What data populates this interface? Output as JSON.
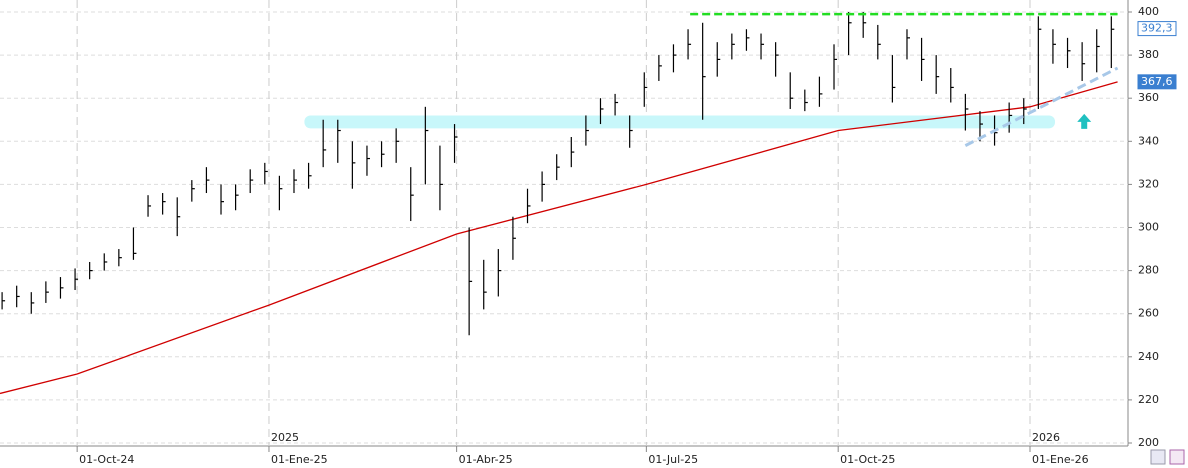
{
  "chart_data": {
    "type": "ohlc",
    "x": [
      "2024-08-26",
      "2024-09-02",
      "2024-09-09",
      "2024-09-16",
      "2024-09-23",
      "2024-09-30",
      "2024-10-07",
      "2024-10-14",
      "2024-10-21",
      "2024-10-28",
      "2024-11-04",
      "2024-11-11",
      "2024-11-18",
      "2024-11-25",
      "2024-12-02",
      "2024-12-09",
      "2024-12-16",
      "2024-12-23",
      "2024-12-30",
      "2025-01-06",
      "2025-01-13",
      "2025-01-20",
      "2025-01-27",
      "2025-02-03",
      "2025-02-10",
      "2025-02-17",
      "2025-02-24",
      "2025-03-03",
      "2025-03-10",
      "2025-03-17",
      "2025-03-24",
      "2025-03-31",
      "2025-04-07",
      "2025-04-14",
      "2025-04-21",
      "2025-04-28",
      "2025-05-05",
      "2025-05-12",
      "2025-05-19",
      "2025-05-26",
      "2025-06-02",
      "2025-06-09",
      "2025-06-16",
      "2025-06-23",
      "2025-06-30",
      "2025-07-07",
      "2025-07-14",
      "2025-07-21",
      "2025-07-28",
      "2025-08-04",
      "2025-08-11",
      "2025-08-18",
      "2025-08-25",
      "2025-09-01",
      "2025-09-08",
      "2025-09-15",
      "2025-09-22",
      "2025-09-29",
      "2025-10-06",
      "2025-10-13",
      "2025-10-20",
      "2025-10-27",
      "2025-11-03",
      "2025-11-10",
      "2025-11-17",
      "2025-11-24",
      "2025-12-01",
      "2025-12-08",
      "2025-12-15",
      "2025-12-22",
      "2025-12-29",
      "2026-01-05",
      "2026-01-12",
      "2026-01-19",
      "2026-01-26",
      "2026-02-02",
      "2026-02-09"
    ],
    "high": [
      270,
      273,
      270,
      275,
      277,
      281,
      284,
      288,
      290,
      300,
      315,
      316,
      314,
      322,
      328,
      320,
      320,
      327,
      330,
      324,
      327,
      330,
      350,
      350,
      340,
      338,
      340,
      346,
      328,
      356,
      338,
      348,
      300,
      285,
      290,
      305,
      318,
      326,
      334,
      342,
      352,
      360,
      362,
      352,
      372,
      380,
      385,
      392,
      395,
      386,
      390,
      392,
      390,
      386,
      372,
      364,
      370,
      385,
      400,
      400,
      394,
      380,
      392,
      388,
      380,
      374,
      362,
      354,
      352,
      358,
      360,
      398,
      392,
      388,
      386,
      392,
      398
    ],
    "low": [
      262,
      263,
      260,
      265,
      267,
      271,
      276,
      280,
      282,
      285,
      305,
      306,
      296,
      312,
      316,
      306,
      308,
      316,
      320,
      308,
      316,
      318,
      328,
      330,
      318,
      324,
      328,
      330,
      303,
      320,
      308,
      330,
      250,
      262,
      268,
      285,
      302,
      312,
      322,
      328,
      338,
      348,
      352,
      337,
      356,
      368,
      372,
      378,
      350,
      370,
      378,
      382,
      378,
      370,
      355,
      354,
      356,
      364,
      380,
      388,
      378,
      358,
      378,
      368,
      362,
      358,
      345,
      340,
      338,
      344,
      348,
      355,
      376,
      374,
      368,
      372,
      374
    ],
    "close": [
      266,
      268,
      265,
      270,
      272,
      276,
      280,
      284,
      286,
      288,
      310,
      312,
      305,
      318,
      322,
      312,
      315,
      322,
      326,
      318,
      322,
      324,
      336,
      345,
      330,
      332,
      334,
      340,
      315,
      345,
      320,
      342,
      275,
      270,
      280,
      295,
      310,
      320,
      328,
      335,
      345,
      355,
      358,
      345,
      365,
      375,
      380,
      385,
      370,
      378,
      385,
      388,
      385,
      380,
      360,
      358,
      362,
      378,
      395,
      395,
      385,
      365,
      388,
      378,
      370,
      365,
      355,
      348,
      344,
      352,
      355,
      392,
      385,
      382,
      376,
      384,
      392
    ],
    "color": "#000000",
    "moving_average": {
      "color": "#d00000",
      "x": [
        "2024-08-25",
        "2024-10-01",
        "2025-01-01",
        "2025-04-01",
        "2025-07-01",
        "2025-10-01",
        "2026-01-01",
        "2026-02-12"
      ],
      "values": [
        223,
        232,
        264,
        297,
        320,
        345,
        356,
        367.6
      ]
    },
    "resistance": {
      "value": 399,
      "from": "2025-07-22",
      "to": "2026-02-12",
      "color": "#22dd22"
    },
    "support_band": {
      "values": [
        346,
        352
      ],
      "from": "2025-01-18",
      "to": "2026-01-13",
      "color": "#c8f7fa"
    },
    "trendline": {
      "x": [
        "2025-12-01",
        "2026-02-12"
      ],
      "values": [
        338,
        374
      ],
      "color": "#a8c8e8"
    },
    "arrow": {
      "x": "2026-01-27",
      "value": 349,
      "color": "#20c0c0"
    },
    "price_markers": [
      {
        "value": 392.3,
        "label": "392,3"
      },
      {
        "value": 367.6,
        "label": "367,6"
      }
    ],
    "xlim": [
      "2024-08-25",
      "2026-02-17"
    ],
    "ylim": [
      198,
      404
    ],
    "yticks": [
      200,
      220,
      240,
      260,
      280,
      300,
      320,
      340,
      360,
      380,
      400
    ],
    "xticks": [
      {
        "value": "2024-10-01",
        "label": "01-Oct-24"
      },
      {
        "value": "2025-01-01",
        "label": "01-Ene-25"
      },
      {
        "value": "2025-04-01",
        "label": "01-Abr-25"
      },
      {
        "value": "2025-07-01",
        "label": "01-Jul-25"
      },
      {
        "value": "2025-10-01",
        "label": "01-Oct-25"
      },
      {
        "value": "2026-01-01",
        "label": "01-Ene-26"
      }
    ],
    "year_labels": [
      {
        "value": "2025-01-01",
        "label": "2025"
      },
      {
        "value": "2026-01-01",
        "label": "2026"
      }
    ],
    "grid": true
  }
}
